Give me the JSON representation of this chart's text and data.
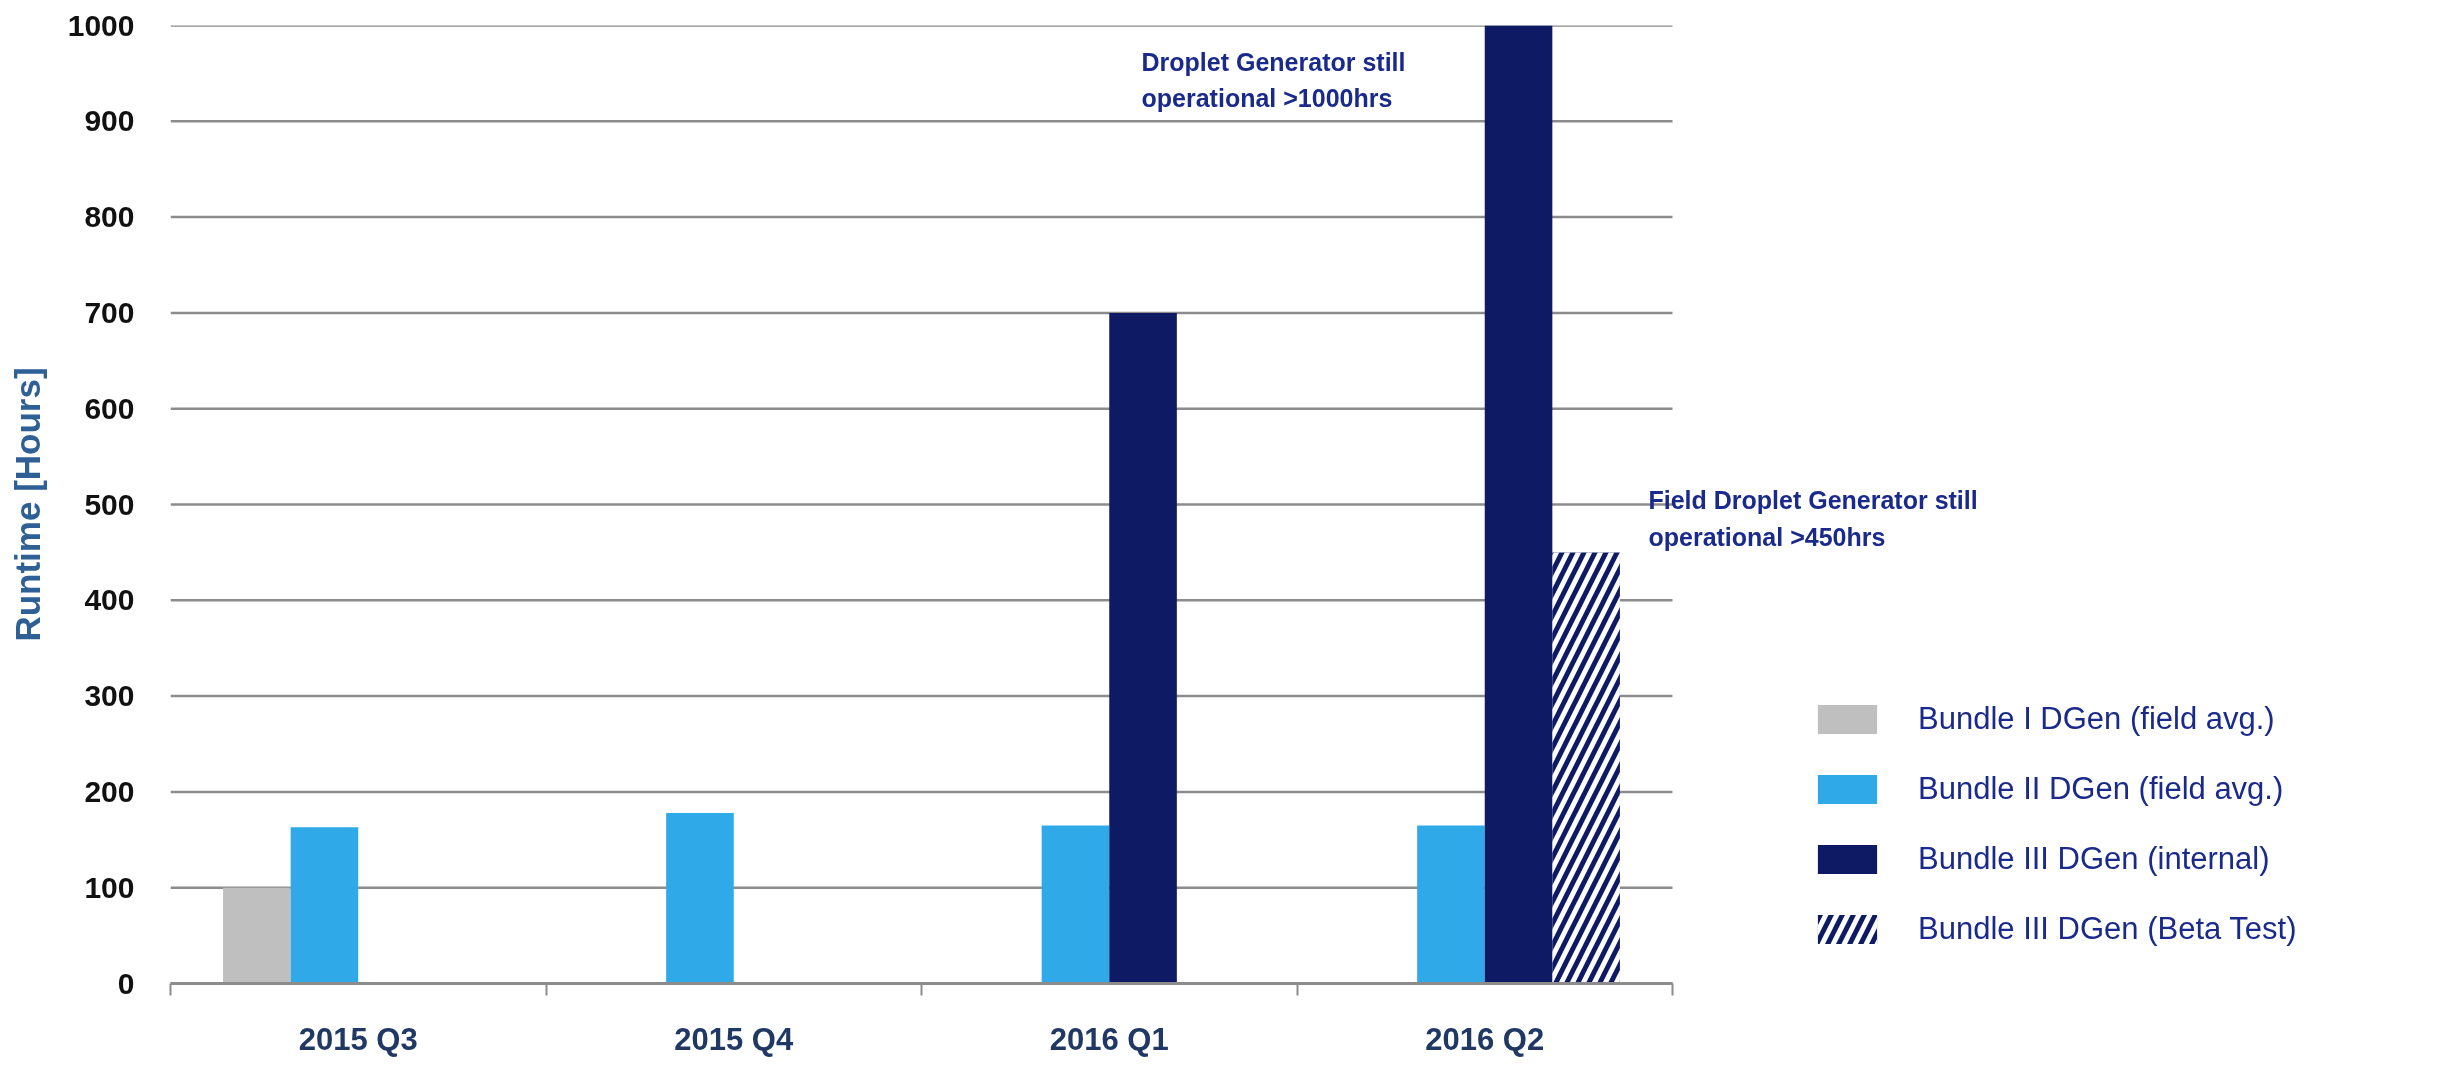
{
  "chart_data": {
    "type": "bar",
    "ylabel": "Runtime [Hours]",
    "categories": [
      "2015 Q3",
      "2015 Q4",
      "2016 Q1",
      "2016 Q2"
    ],
    "series": [
      {
        "name": "Bundle I DGen (field avg.)",
        "color": "#bfbfbf",
        "values": [
          100,
          null,
          null,
          null
        ]
      },
      {
        "name": "Bundle II DGen (field avg.)",
        "color": "#2fa9e7",
        "values": [
          163,
          178,
          165,
          165
        ]
      },
      {
        "name": "Bundle III DGen (internal)",
        "color": "#0e1a63",
        "values": [
          null,
          null,
          700,
          1000
        ]
      },
      {
        "name": "Bundle III DGen (Beta Test)",
        "color": "#0e1a63",
        "values": [
          null,
          null,
          null,
          450
        ]
      }
    ],
    "ylim": [
      0,
      1000
    ],
    "yticks": [
      0,
      100,
      200,
      300,
      400,
      500,
      600,
      700,
      800,
      900,
      1000
    ],
    "grid": "y",
    "legend": "bottom right",
    "annotations": [
      "Droplet Generator still operational >1000hrs",
      "Field Droplet Generator still operational  >450hrs"
    ]
  }
}
